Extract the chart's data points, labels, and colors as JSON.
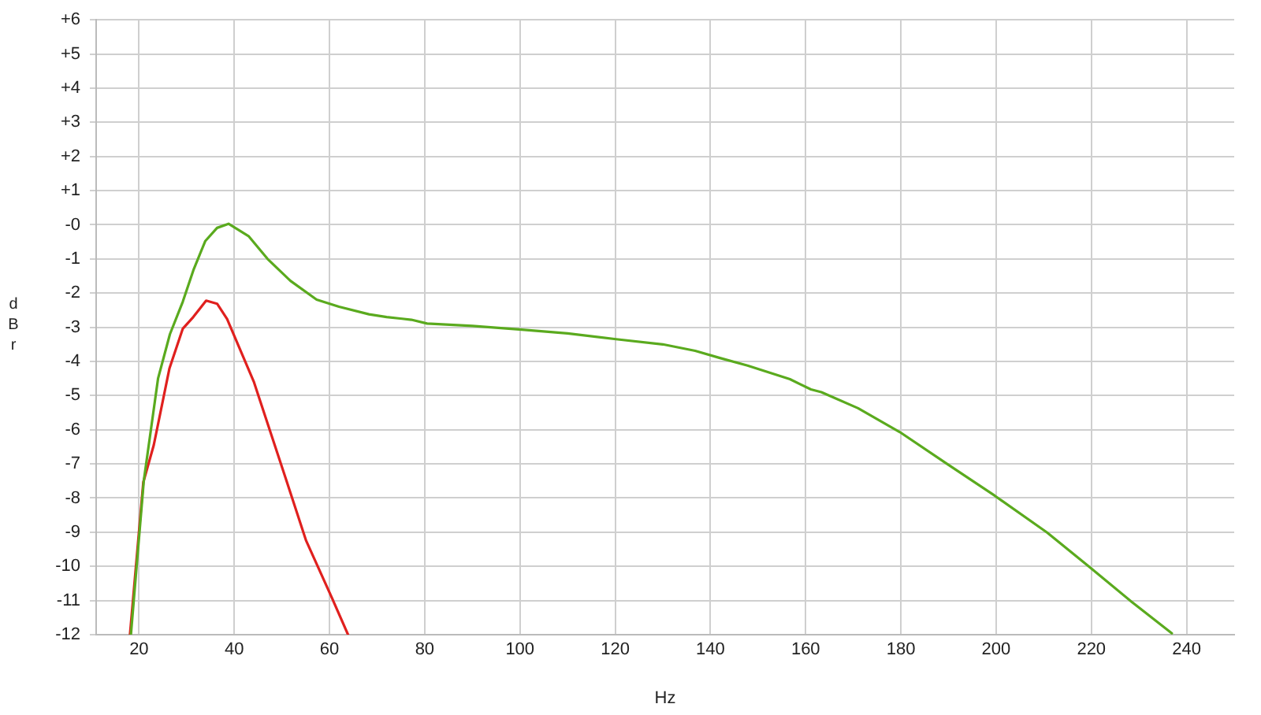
{
  "chart_data": {
    "type": "line",
    "xlabel": "Hz",
    "ylabel": "dBr",
    "xlim": [
      11,
      250
    ],
    "xticks": [
      20,
      40,
      60,
      80,
      100,
      120,
      140,
      160,
      180,
      200,
      220,
      240
    ],
    "ylim": [
      -12,
      6
    ],
    "yticks": [
      {
        "value": 6,
        "label": "+6"
      },
      {
        "value": 5,
        "label": "+5"
      },
      {
        "value": 4,
        "label": "+4"
      },
      {
        "value": 3,
        "label": "+3"
      },
      {
        "value": 2,
        "label": "+2"
      },
      {
        "value": 1,
        "label": "+1"
      },
      {
        "value": 0,
        "label": "-0"
      },
      -1,
      -2,
      -3,
      -4,
      -5,
      -6,
      -7,
      -8,
      -9,
      -10,
      -11,
      -12
    ],
    "grid": true,
    "marker": "none",
    "line_style": "solid",
    "series": [
      {
        "color": "#5aaa1e",
        "x": [
          18.3,
          21,
          24,
          26.5,
          29.2,
          31.5,
          33.9,
          36.4,
          38.8,
          43,
          47,
          51.8,
          57.3,
          62,
          68.3,
          72,
          77.2,
          80.5,
          90,
          100.4,
          110,
          120.2,
          130,
          136.8,
          142,
          147.8,
          156.7,
          161.1,
          163.3,
          171,
          179.8,
          189.7,
          199.7,
          210.7,
          219.6,
          228.4,
          236.9
        ],
        "values": [
          -12,
          -7.5,
          -4.5,
          -3.2,
          -2.25,
          -1.3,
          -0.48,
          -0.09,
          0.03,
          -0.33,
          -1,
          -1.64,
          -2.19,
          -2.4,
          -2.62,
          -2.7,
          -2.78,
          -2.89,
          -2.96,
          -3.07,
          -3.18,
          -3.35,
          -3.5,
          -3.69,
          -3.9,
          -4.12,
          -4.52,
          -4.82,
          -4.9,
          -5.37,
          -6.07,
          -7.0,
          -7.93,
          -9.01,
          -10.02,
          -11.03,
          -11.96
        ]
      },
      {
        "color": "#e0201e",
        "x": [
          18.1,
          20.9,
          23.1,
          26.4,
          29.2,
          31.4,
          34.1,
          36.4,
          38.5,
          44.1,
          50.7,
          55.1,
          60.6,
          63.9
        ],
        "values": [
          -12,
          -7.54,
          -6.45,
          -4.2,
          -3.04,
          -2.7,
          -2.22,
          -2.31,
          -2.76,
          -4.59,
          -7.38,
          -9.25,
          -10.95,
          -12
        ]
      }
    ]
  }
}
